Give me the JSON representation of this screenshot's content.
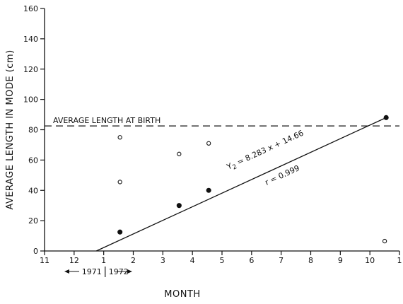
{
  "chart_data": {
    "type": "scatter",
    "title": "",
    "xlabel": "MONTH",
    "ylabel": "AVERAGE LENGTH IN MODE (cm)",
    "x_categories": [
      "11",
      "12",
      "1",
      "2",
      "3",
      "4",
      "5",
      "6",
      "7",
      "8",
      "9",
      "10",
      "1"
    ],
    "xlim": [
      0,
      12
    ],
    "ylim": [
      0,
      160
    ],
    "yticks": [
      0,
      20,
      40,
      60,
      80,
      100,
      120,
      140,
      160
    ],
    "year_divider": {
      "before": "1971",
      "after": "1972",
      "x": 2.05
    },
    "reference_line": {
      "y": 82.5,
      "label": "AVERAGE LENGTH AT BIRTH",
      "style": "dashed"
    },
    "regression": {
      "equation": "Y",
      "subscript": "2",
      "equation_rest": " = 8.283 x + 14.66",
      "r_label": "r = 0.999",
      "x_from": 1.75,
      "y_from": 0,
      "x_to": 11.55,
      "y_to": 88
    },
    "series": [
      {
        "marker": "filled",
        "points": [
          [
            2.55,
            12.5
          ],
          [
            4.55,
            30
          ],
          [
            5.55,
            40
          ],
          [
            11.55,
            88
          ]
        ]
      },
      {
        "marker": "open",
        "points": [
          [
            2.55,
            75
          ],
          [
            2.55,
            45.5
          ],
          [
            4.55,
            64
          ],
          [
            5.55,
            71
          ],
          [
            11.5,
            6.5
          ]
        ]
      }
    ]
  }
}
